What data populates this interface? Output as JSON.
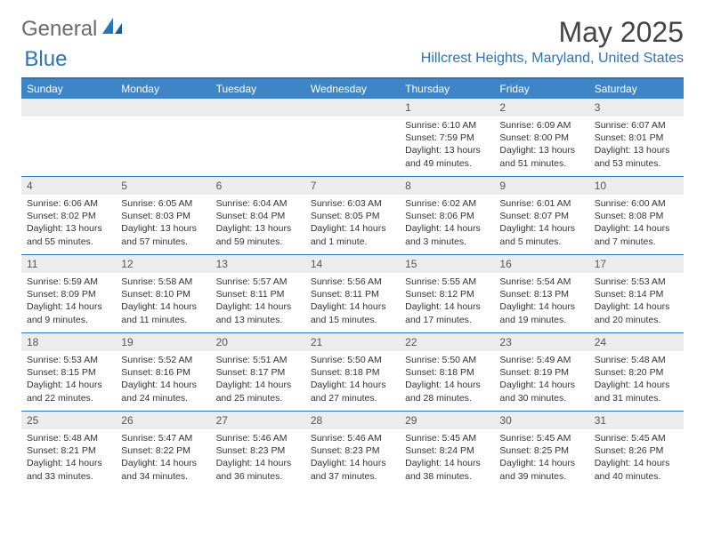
{
  "brand": {
    "part1": "General",
    "part2": "Blue"
  },
  "title": "May 2025",
  "location": "Hillcrest Heights, Maryland, United States",
  "colors": {
    "header_bar": "#3d85c6",
    "accent": "#2b74b8",
    "daynum_bg": "#ececec",
    "text": "#333333",
    "white": "#ffffff"
  },
  "fonts": {
    "base_family": "Arial",
    "title_size_pt": 24,
    "body_size_pt": 8
  },
  "days_of_week": [
    "Sunday",
    "Monday",
    "Tuesday",
    "Wednesday",
    "Thursday",
    "Friday",
    "Saturday"
  ],
  "weeks": [
    [
      {
        "n": "",
        "sr": "",
        "ss": "",
        "dl": ""
      },
      {
        "n": "",
        "sr": "",
        "ss": "",
        "dl": ""
      },
      {
        "n": "",
        "sr": "",
        "ss": "",
        "dl": ""
      },
      {
        "n": "",
        "sr": "",
        "ss": "",
        "dl": ""
      },
      {
        "n": "1",
        "sr": "Sunrise: 6:10 AM",
        "ss": "Sunset: 7:59 PM",
        "dl": "Daylight: 13 hours and 49 minutes."
      },
      {
        "n": "2",
        "sr": "Sunrise: 6:09 AM",
        "ss": "Sunset: 8:00 PM",
        "dl": "Daylight: 13 hours and 51 minutes."
      },
      {
        "n": "3",
        "sr": "Sunrise: 6:07 AM",
        "ss": "Sunset: 8:01 PM",
        "dl": "Daylight: 13 hours and 53 minutes."
      }
    ],
    [
      {
        "n": "4",
        "sr": "Sunrise: 6:06 AM",
        "ss": "Sunset: 8:02 PM",
        "dl": "Daylight: 13 hours and 55 minutes."
      },
      {
        "n": "5",
        "sr": "Sunrise: 6:05 AM",
        "ss": "Sunset: 8:03 PM",
        "dl": "Daylight: 13 hours and 57 minutes."
      },
      {
        "n": "6",
        "sr": "Sunrise: 6:04 AM",
        "ss": "Sunset: 8:04 PM",
        "dl": "Daylight: 13 hours and 59 minutes."
      },
      {
        "n": "7",
        "sr": "Sunrise: 6:03 AM",
        "ss": "Sunset: 8:05 PM",
        "dl": "Daylight: 14 hours and 1 minute."
      },
      {
        "n": "8",
        "sr": "Sunrise: 6:02 AM",
        "ss": "Sunset: 8:06 PM",
        "dl": "Daylight: 14 hours and 3 minutes."
      },
      {
        "n": "9",
        "sr": "Sunrise: 6:01 AM",
        "ss": "Sunset: 8:07 PM",
        "dl": "Daylight: 14 hours and 5 minutes."
      },
      {
        "n": "10",
        "sr": "Sunrise: 6:00 AM",
        "ss": "Sunset: 8:08 PM",
        "dl": "Daylight: 14 hours and 7 minutes."
      }
    ],
    [
      {
        "n": "11",
        "sr": "Sunrise: 5:59 AM",
        "ss": "Sunset: 8:09 PM",
        "dl": "Daylight: 14 hours and 9 minutes."
      },
      {
        "n": "12",
        "sr": "Sunrise: 5:58 AM",
        "ss": "Sunset: 8:10 PM",
        "dl": "Daylight: 14 hours and 11 minutes."
      },
      {
        "n": "13",
        "sr": "Sunrise: 5:57 AM",
        "ss": "Sunset: 8:11 PM",
        "dl": "Daylight: 14 hours and 13 minutes."
      },
      {
        "n": "14",
        "sr": "Sunrise: 5:56 AM",
        "ss": "Sunset: 8:11 PM",
        "dl": "Daylight: 14 hours and 15 minutes."
      },
      {
        "n": "15",
        "sr": "Sunrise: 5:55 AM",
        "ss": "Sunset: 8:12 PM",
        "dl": "Daylight: 14 hours and 17 minutes."
      },
      {
        "n": "16",
        "sr": "Sunrise: 5:54 AM",
        "ss": "Sunset: 8:13 PM",
        "dl": "Daylight: 14 hours and 19 minutes."
      },
      {
        "n": "17",
        "sr": "Sunrise: 5:53 AM",
        "ss": "Sunset: 8:14 PM",
        "dl": "Daylight: 14 hours and 20 minutes."
      }
    ],
    [
      {
        "n": "18",
        "sr": "Sunrise: 5:53 AM",
        "ss": "Sunset: 8:15 PM",
        "dl": "Daylight: 14 hours and 22 minutes."
      },
      {
        "n": "19",
        "sr": "Sunrise: 5:52 AM",
        "ss": "Sunset: 8:16 PM",
        "dl": "Daylight: 14 hours and 24 minutes."
      },
      {
        "n": "20",
        "sr": "Sunrise: 5:51 AM",
        "ss": "Sunset: 8:17 PM",
        "dl": "Daylight: 14 hours and 25 minutes."
      },
      {
        "n": "21",
        "sr": "Sunrise: 5:50 AM",
        "ss": "Sunset: 8:18 PM",
        "dl": "Daylight: 14 hours and 27 minutes."
      },
      {
        "n": "22",
        "sr": "Sunrise: 5:50 AM",
        "ss": "Sunset: 8:18 PM",
        "dl": "Daylight: 14 hours and 28 minutes."
      },
      {
        "n": "23",
        "sr": "Sunrise: 5:49 AM",
        "ss": "Sunset: 8:19 PM",
        "dl": "Daylight: 14 hours and 30 minutes."
      },
      {
        "n": "24",
        "sr": "Sunrise: 5:48 AM",
        "ss": "Sunset: 8:20 PM",
        "dl": "Daylight: 14 hours and 31 minutes."
      }
    ],
    [
      {
        "n": "25",
        "sr": "Sunrise: 5:48 AM",
        "ss": "Sunset: 8:21 PM",
        "dl": "Daylight: 14 hours and 33 minutes."
      },
      {
        "n": "26",
        "sr": "Sunrise: 5:47 AM",
        "ss": "Sunset: 8:22 PM",
        "dl": "Daylight: 14 hours and 34 minutes."
      },
      {
        "n": "27",
        "sr": "Sunrise: 5:46 AM",
        "ss": "Sunset: 8:23 PM",
        "dl": "Daylight: 14 hours and 36 minutes."
      },
      {
        "n": "28",
        "sr": "Sunrise: 5:46 AM",
        "ss": "Sunset: 8:23 PM",
        "dl": "Daylight: 14 hours and 37 minutes."
      },
      {
        "n": "29",
        "sr": "Sunrise: 5:45 AM",
        "ss": "Sunset: 8:24 PM",
        "dl": "Daylight: 14 hours and 38 minutes."
      },
      {
        "n": "30",
        "sr": "Sunrise: 5:45 AM",
        "ss": "Sunset: 8:25 PM",
        "dl": "Daylight: 14 hours and 39 minutes."
      },
      {
        "n": "31",
        "sr": "Sunrise: 5:45 AM",
        "ss": "Sunset: 8:26 PM",
        "dl": "Daylight: 14 hours and 40 minutes."
      }
    ]
  ]
}
